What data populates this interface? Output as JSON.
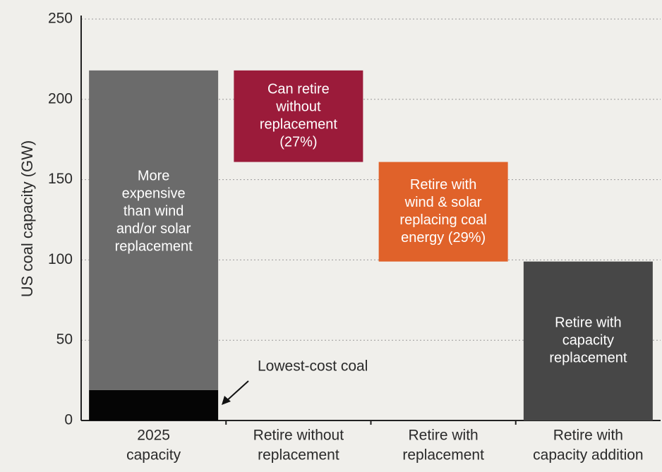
{
  "chart_data": {
    "type": "waterfall",
    "y_label": "US coal capacity (GW)",
    "ylim": [
      0,
      250
    ],
    "yticks": [
      0,
      50,
      100,
      150,
      200,
      250
    ],
    "grid": true,
    "categories": [
      [
        "2025",
        "capacity"
      ],
      [
        "Retire without",
        "replacement"
      ],
      [
        "Retire with",
        "replacement"
      ],
      [
        "Retire with",
        "capacity addition"
      ]
    ],
    "series": [
      {
        "name": [
          "Lowest-cost coal"
        ],
        "color": "#050505",
        "values": [
          19,
          null,
          null,
          null
        ]
      },
      {
        "name": [
          "More",
          "expensive",
          "than wind",
          "and/or solar",
          "replacement"
        ],
        "color": "#6b6b6b",
        "values": [
          199,
          null,
          null,
          null
        ]
      },
      {
        "name": [
          "Can retire",
          "without",
          "replacement",
          "(27%)"
        ],
        "color": "#9b1b3a",
        "values": [
          null,
          -57,
          null,
          null
        ]
      },
      {
        "name": [
          "Retire with",
          "wind & solar",
          "replacing coal",
          "energy (29%)"
        ],
        "color": "#e0622a",
        "values": [
          null,
          null,
          -62,
          null
        ]
      },
      {
        "name": [
          "Retire with",
          "capacity",
          "replacement"
        ],
        "color": "#474747",
        "values": [
          null,
          null,
          null,
          -99
        ]
      }
    ]
  }
}
